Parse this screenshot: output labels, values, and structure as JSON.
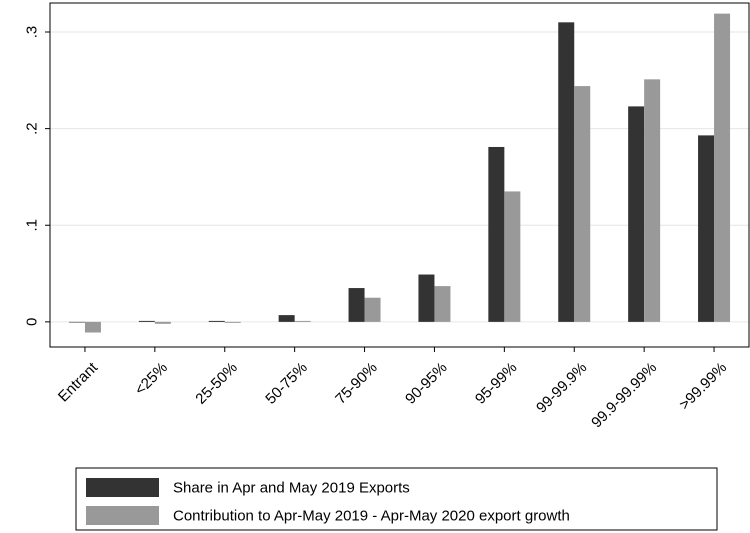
{
  "chart_data": {
    "type": "bar",
    "title": "",
    "xlabel": "",
    "ylabel": "",
    "categories": [
      "Entrant",
      "<25%",
      "25-50%",
      "50-75%",
      "75-90%",
      "90-95%",
      "95-99%",
      "99-99.9%",
      "99.9-99.99%",
      ">99.99%"
    ],
    "series": [
      {
        "name": "Share in Apr and May 2019 Exports",
        "color": "#333333",
        "values": [
          0,
          0.001,
          0.001,
          0.007,
          0.035,
          0.049,
          0.181,
          0.31,
          0.223,
          0.193
        ]
      },
      {
        "name": "Contribution to Apr-May 2019 - Apr-May 2020 export growth",
        "color": "#999999",
        "values": [
          -0.011,
          -0.002,
          -0.001,
          0.001,
          0.025,
          0.037,
          0.135,
          0.244,
          0.251,
          0.319
        ]
      }
    ],
    "y_ticks": [
      0,
      0.1,
      0.2,
      0.3
    ],
    "y_tick_labels": [
      "0",
      ".1",
      ".2",
      ".3"
    ],
    "ylim": [
      -0.026,
      0.33
    ],
    "grid": true,
    "legend_position": "bottom"
  }
}
